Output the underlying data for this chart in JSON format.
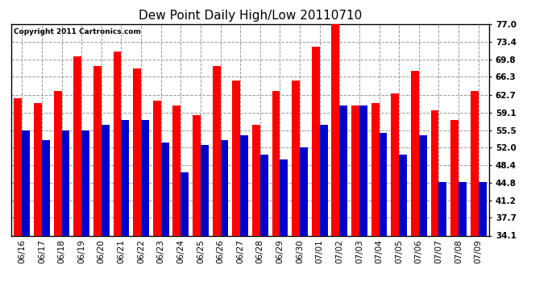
{
  "title": "Dew Point Daily High/Low 20110710",
  "copyright": "Copyright 2011 Cartronics.com",
  "categories": [
    "06/16",
    "06/17",
    "06/18",
    "06/19",
    "06/20",
    "06/21",
    "06/22",
    "06/23",
    "06/24",
    "06/25",
    "06/26",
    "06/27",
    "06/28",
    "06/29",
    "06/30",
    "07/01",
    "07/02",
    "07/03",
    "07/04",
    "07/05",
    "07/06",
    "07/07",
    "07/08",
    "07/09"
  ],
  "highs": [
    62.0,
    61.0,
    63.5,
    70.5,
    68.5,
    71.5,
    68.0,
    61.5,
    60.5,
    58.5,
    68.5,
    65.5,
    56.5,
    63.5,
    65.5,
    72.5,
    77.0,
    60.5,
    61.0,
    63.0,
    67.5,
    59.5,
    57.5,
    63.5
  ],
  "lows": [
    55.5,
    53.5,
    55.5,
    55.5,
    56.5,
    57.5,
    57.5,
    53.0,
    47.0,
    52.5,
    53.5,
    54.5,
    50.5,
    49.5,
    52.0,
    56.5,
    60.5,
    60.5,
    55.0,
    50.5,
    54.5,
    45.0,
    45.0,
    45.0
  ],
  "high_color": "#ff0000",
  "low_color": "#0000cc",
  "background_color": "#ffffff",
  "plot_bg_color": "#ffffff",
  "grid_color": "#999999",
  "ylim": [
    34.1,
    77.0
  ],
  "yticks": [
    34.1,
    37.7,
    41.2,
    44.8,
    48.4,
    52.0,
    55.5,
    59.1,
    62.7,
    66.3,
    69.8,
    73.4,
    77.0
  ],
  "bar_width": 0.4,
  "title_fontsize": 11,
  "tick_fontsize": 7.5,
  "copyright_fontsize": 6.5,
  "figsize": [
    6.9,
    3.75
  ],
  "dpi": 100
}
